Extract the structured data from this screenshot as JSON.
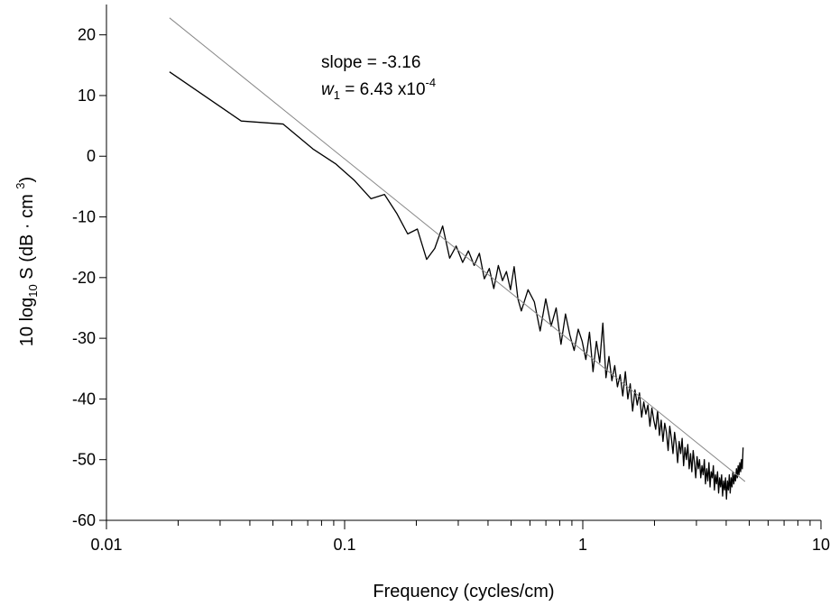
{
  "chart_data": {
    "type": "line",
    "xlabel": "Frequency (cycles/cm)",
    "ylabel": {
      "before": "10 log",
      "sub": "10",
      "middle": " S  (dB · cm ",
      "sup": "3",
      "after": ")"
    },
    "annotation_1": "slope = -3.16",
    "annotation_2": {
      "var": "w",
      "sub": "1",
      "middle": " = 6.43 x10",
      "sup": "-4"
    },
    "xscale": "log",
    "xlim": [
      0.01,
      10
    ],
    "ylim": [
      -60,
      25
    ],
    "xticks": [
      0.01,
      0.1,
      1,
      10
    ],
    "x_minor_ticks": [
      0.02,
      0.03,
      0.04,
      0.05,
      0.06,
      0.07,
      0.08,
      0.09,
      0.2,
      0.3,
      0.4,
      0.5,
      0.6,
      0.7,
      0.8,
      0.9,
      2,
      3,
      4,
      5,
      6,
      7,
      8,
      9
    ],
    "yticks": [
      -60,
      -50,
      -40,
      -30,
      -20,
      -10,
      0,
      10,
      20
    ],
    "series": [
      {
        "color": "#000000",
        "x": [
          0.0184,
          0.0368,
          0.0552,
          0.0736,
          0.092,
          0.11,
          0.129,
          0.147,
          0.166,
          0.184,
          0.202,
          0.221,
          0.239,
          0.258,
          0.276,
          0.294,
          0.313,
          0.331,
          0.35,
          0.368,
          0.386,
          0.405,
          0.423,
          0.442,
          0.46,
          0.478,
          0.497,
          0.515,
          0.534,
          0.552,
          0.589,
          0.626,
          0.662,
          0.699,
          0.736,
          0.773,
          0.81,
          0.846,
          0.883,
          0.92,
          0.957,
          0.994,
          1.03,
          1.067,
          1.104,
          1.141,
          1.178,
          1.214,
          1.251,
          1.288,
          1.325,
          1.362,
          1.398,
          1.435,
          1.472,
          1.509,
          1.546,
          1.582,
          1.619,
          1.656,
          1.693,
          1.73,
          1.766,
          1.803,
          1.84,
          1.877,
          1.914,
          1.95,
          1.987,
          2.024,
          2.061,
          2.098,
          2.134,
          2.171,
          2.208,
          2.245,
          2.282,
          2.318,
          2.355,
          2.392,
          2.429,
          2.466,
          2.502,
          2.539,
          2.576,
          2.613,
          2.65,
          2.686,
          2.723,
          2.76,
          2.797,
          2.834,
          2.87,
          2.907,
          2.944,
          2.981,
          3.018,
          3.054,
          3.091,
          3.128,
          3.165,
          3.202,
          3.238,
          3.275,
          3.312,
          3.349,
          3.386,
          3.422,
          3.459,
          3.496,
          3.533,
          3.57,
          3.606,
          3.643,
          3.68,
          3.717,
          3.754,
          3.79,
          3.827,
          3.864,
          3.901,
          3.938,
          3.974,
          4.011,
          4.048,
          4.085,
          4.122,
          4.158,
          4.195,
          4.232,
          4.269,
          4.306,
          4.342,
          4.379,
          4.416,
          4.453,
          4.49,
          4.526,
          4.563,
          4.6,
          4.637,
          4.674,
          4.71
        ],
        "values": [
          13.9,
          5.8,
          5.3,
          1.2,
          -1.3,
          -4.0,
          -7.0,
          -6.3,
          -9.5,
          -12.8,
          -12.0,
          -17.0,
          -15.2,
          -11.5,
          -16.8,
          -14.8,
          -17.5,
          -15.6,
          -18.0,
          -16.0,
          -20.2,
          -18.5,
          -21.8,
          -18.0,
          -20.5,
          -19.0,
          -22.0,
          -18.2,
          -23.5,
          -25.5,
          -22.0,
          -24.0,
          -28.8,
          -23.5,
          -28.0,
          -25.0,
          -31.0,
          -26.0,
          -29.5,
          -32.0,
          -28.5,
          -30.5,
          -33.5,
          -29.0,
          -35.5,
          -30.5,
          -34.0,
          -27.5,
          -36.5,
          -33.0,
          -37.0,
          -34.5,
          -38.0,
          -36.0,
          -39.5,
          -35.5,
          -40.0,
          -37.5,
          -42.0,
          -38.5,
          -41.0,
          -39.0,
          -43.0,
          -40.5,
          -42.5,
          -41.0,
          -44.5,
          -41.5,
          -43.5,
          -45.0,
          -42.0,
          -46.0,
          -43.5,
          -47.0,
          -44.0,
          -45.5,
          -48.5,
          -44.5,
          -46.5,
          -49.0,
          -45.5,
          -47.5,
          -50.5,
          -47.0,
          -49.0,
          -46.5,
          -51.0,
          -48.0,
          -50.0,
          -47.5,
          -51.5,
          -49.0,
          -52.0,
          -48.5,
          -50.5,
          -53.0,
          -49.5,
          -51.5,
          -50.0,
          -53.0,
          -51.0,
          -52.5,
          -50.0,
          -54.0,
          -51.5,
          -53.5,
          -50.5,
          -54.5,
          -52.0,
          -53.0,
          -51.0,
          -55.0,
          -52.5,
          -54.0,
          -52.0,
          -55.5,
          -53.0,
          -54.5,
          -52.5,
          -56.0,
          -53.5,
          -55.0,
          -53.0,
          -56.5,
          -53.5,
          -55.0,
          -52.5,
          -55.5,
          -53.0,
          -54.5,
          -52.0,
          -54.0,
          -52.5,
          -53.5,
          -51.5,
          -53.0,
          -51.0,
          -52.5,
          -50.5,
          -52.0,
          -50.0,
          -51.5,
          -48.0
        ]
      },
      {
        "color": "#888888",
        "x": [
          0.0184,
          4.8
        ],
        "values": [
          22.8,
          -53.6
        ]
      }
    ]
  }
}
